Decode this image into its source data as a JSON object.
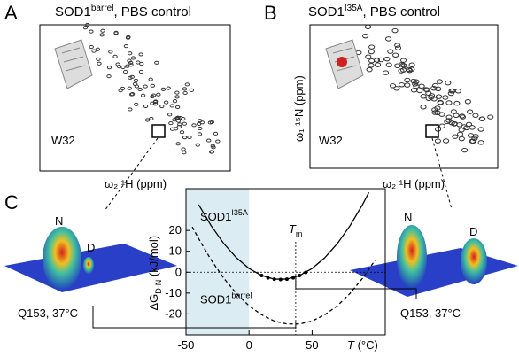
{
  "panels": {
    "a": {
      "letter": "A",
      "title": {
        "main": "SOD1",
        "sup": "barrel",
        "rest": ", PBS control"
      },
      "residue": "W32",
      "x_label": "ω₂ ¹H (ppm)"
    },
    "b": {
      "letter": "B",
      "title": {
        "main": "SOD1",
        "sup": "I35A",
        "rest": ", PBS control"
      },
      "residue": "W32",
      "x_label": "ω₂ ¹H (ppm)",
      "y_label": "ω₁ ¹⁵N (ppm)"
    },
    "c": {
      "letter": "C",
      "left": {
        "state_n": "N",
        "state_d": "D",
        "caption": "Q153, 37°C"
      },
      "right": {
        "state_n": "N",
        "state_d": "D",
        "caption": "Q153, 37°C"
      }
    }
  },
  "chart_data": {
    "type": "line",
    "y_label": {
      "main": "ΔG",
      "sub": "D-N",
      "rest": " (kJ/mol)"
    },
    "x_label": {
      "main": "T",
      "rest": " (°C)"
    },
    "tm_label": {
      "main": "T",
      "sub": "m"
    },
    "tm": 37,
    "shaded_range": [
      -50,
      0
    ],
    "xlim": [
      -50,
      108
    ],
    "ylim": [
      -30,
      40
    ],
    "xticks": [
      -50,
      0,
      50
    ],
    "yticks": [
      -20,
      -10,
      0,
      10,
      20
    ],
    "series": [
      {
        "name": "SOD1",
        "name_sup": "I35A",
        "color": "#000000",
        "dash": false,
        "x": [
          -40,
          -30,
          -20,
          -10,
          0,
          10,
          20,
          30,
          40,
          50,
          60,
          70,
          80,
          90,
          95
        ],
        "values": [
          32.4,
          22.2,
          13.7,
          6.9,
          1.8,
          -1.6,
          -3.3,
          -3.3,
          -1.6,
          1.8,
          6.9,
          13.7,
          22.2,
          32.4,
          38.2
        ]
      },
      {
        "name": "SOD1",
        "name_sup": "barrel",
        "color": "#000000",
        "dash": true,
        "x": [
          -45,
          -40,
          -30,
          -20,
          -10,
          0,
          10,
          20,
          30,
          40,
          50,
          60,
          70,
          80,
          90,
          100
        ],
        "values": [
          21.7,
          16.1,
          5.8,
          -2.9,
          -10.2,
          -16.1,
          -20.4,
          -23.4,
          -24.8,
          -24.8,
          -23.4,
          -20.4,
          -16.1,
          -10.2,
          -2.9,
          5.8
        ]
      }
    ],
    "points": {
      "color": "#000000",
      "x": [
        10,
        15,
        20,
        25,
        30,
        35,
        40,
        45
      ],
      "values": [
        -1.6,
        -2.7,
        -3.3,
        -3.5,
        -3.3,
        -2.7,
        -1.6,
        -0.1
      ]
    }
  }
}
